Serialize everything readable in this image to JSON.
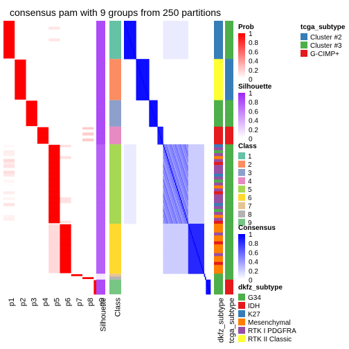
{
  "title": "consensus pam with 9 groups from 250 partitions",
  "chart_data": {
    "type": "heatmap",
    "n_groups": 9,
    "n_partitions": 250,
    "prob_columns": [
      "p1",
      "p2",
      "p3",
      "p4",
      "p5",
      "p6",
      "p7",
      "p8",
      "p9"
    ],
    "annotation_columns": [
      "Silhouette",
      "Class"
    ],
    "right_annotation_columns": [
      "dkfz_subtype",
      "tcga_subtype"
    ],
    "class_blocks": [
      {
        "class": 1,
        "rows": 13
      },
      {
        "class": 2,
        "rows": 14
      },
      {
        "class": 3,
        "rows": 9
      },
      {
        "class": 4,
        "rows": 6
      },
      {
        "class": 5,
        "rows": 27
      },
      {
        "class": 6,
        "rows": 17
      },
      {
        "class": 7,
        "rows": 1
      },
      {
        "class": 8,
        "rows": 1
      },
      {
        "class": 9,
        "rows": 5
      }
    ],
    "class_colors": {
      "1": "#66C2A5",
      "2": "#FC8D62",
      "3": "#8DA0CB",
      "4": "#E78AC3",
      "5": "#A6D854",
      "6": "#FFD92F",
      "7": "#E5C494",
      "8": "#B3B3B3",
      "9": "#77C683"
    },
    "legends": {
      "tcga_subtype": {
        "title": "tcga_subtype",
        "items": [
          {
            "label": "Cluster #2",
            "color": "#377EB8"
          },
          {
            "label": "Cluster #3",
            "color": "#4DAF4A"
          },
          {
            "label": "G-CIMP+",
            "color": "#E41A1C"
          }
        ]
      },
      "prob": {
        "title": "Prob",
        "ticks": [
          "1",
          "0.8",
          "0.6",
          "0.4",
          "0.2",
          "0"
        ],
        "colors": [
          "#FF0000",
          "#FFFFFF"
        ]
      },
      "silhouette": {
        "title": "Silhouette",
        "ticks": [
          "1",
          "0.8",
          "0.6",
          "0.4",
          "0.2",
          "0"
        ],
        "colors": [
          "#9E2BF5",
          "#FFFFFF"
        ]
      },
      "class": {
        "title": "Class",
        "items": [
          {
            "label": "1",
            "color": "#66C2A5"
          },
          {
            "label": "2",
            "color": "#FC8D62"
          },
          {
            "label": "3",
            "color": "#8DA0CB"
          },
          {
            "label": "4",
            "color": "#E78AC3"
          },
          {
            "label": "5",
            "color": "#A6D854"
          },
          {
            "label": "6",
            "color": "#FFD92F"
          },
          {
            "label": "7",
            "color": "#E5C494"
          },
          {
            "label": "8",
            "color": "#B3B3B3"
          },
          {
            "label": "9",
            "color": "#77C683"
          }
        ]
      },
      "consensus": {
        "title": "Consensus",
        "ticks": [
          "1",
          "0.8",
          "0.6",
          "0.4",
          "0.2",
          "0"
        ],
        "colors": [
          "#0000FF",
          "#FFFFFF"
        ]
      },
      "dkfz_subtype": {
        "title": "dkfz_subtype",
        "items": [
          {
            "label": "G34",
            "color": "#4DAF4A"
          },
          {
            "label": "IDH",
            "color": "#E41A1C"
          },
          {
            "label": "K27",
            "color": "#377EB8"
          },
          {
            "label": "Mesenchymal",
            "color": "#FF7F00"
          },
          {
            "label": "RTK I PDGFRA",
            "color": "#984EA3"
          },
          {
            "label": "RTK II Classic",
            "color": "#FFFF33"
          }
        ]
      }
    }
  }
}
